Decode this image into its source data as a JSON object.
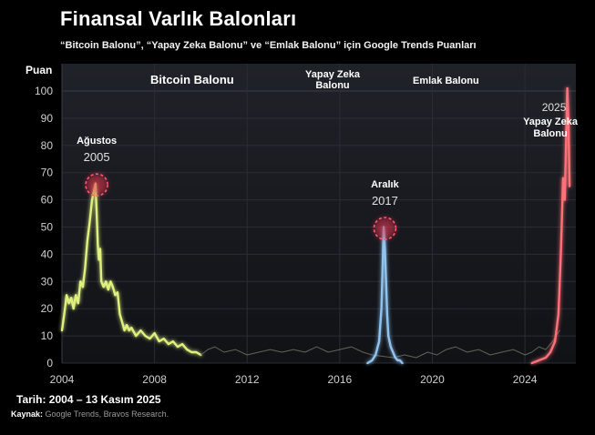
{
  "header": {
    "title": "Finansal Varlık Balonları",
    "subtitle": "“Bitcoin Balonu”, “Yapay Zeka Balonu” ve “Emlak Balonu” için Google Trends Puanları"
  },
  "footer": {
    "date_label": "Tarih:",
    "date_value": "2004 – 13 Kasım 2025",
    "source_label": "Kaynak:",
    "source_value": "Google Trends, Bravos Research."
  },
  "colors": {
    "bitcoin": "#8fc4f0",
    "ai": "#ff6f78",
    "housing": "#dff07e",
    "grid": "#2a2d35",
    "background_top": "#202229",
    "background_bottom": "#111216",
    "highlight": "#e8344f"
  },
  "chart_data": {
    "type": "line",
    "title": "Finansal Varlık Balonları",
    "ylabel": "Puan",
    "xlabel": "",
    "xlim": [
      2004,
      2026.2
    ],
    "ylim": [
      0,
      100
    ],
    "x_ticks": [
      2004,
      2008,
      2012,
      2016,
      2020,
      2024
    ],
    "y_ticks": [
      0,
      10,
      20,
      30,
      40,
      50,
      60,
      70,
      80,
      90,
      100
    ],
    "grid": true,
    "legend_position": "top",
    "legend": [
      {
        "key": "bitcoin",
        "label": "Bitcoin Balonu"
      },
      {
        "key": "ai",
        "label": "Yapay Zeka\nBalonu"
      },
      {
        "key": "housing",
        "label": "Emlak Balonu"
      }
    ],
    "series": [
      {
        "name": "Emlak Balonu",
        "key": "housing",
        "x": [
          2004.0,
          2004.1,
          2004.2,
          2004.3,
          2004.4,
          2004.5,
          2004.6,
          2004.7,
          2004.8,
          2004.9,
          2005.0,
          2005.1,
          2005.2,
          2005.3,
          2005.4,
          2005.45,
          2005.5,
          2005.55,
          2005.6,
          2005.65,
          2005.7,
          2005.8,
          2005.9,
          2006.0,
          2006.1,
          2006.2,
          2006.3,
          2006.4,
          2006.5,
          2006.6,
          2006.7,
          2006.8,
          2006.9,
          2007.0,
          2007.2,
          2007.4,
          2007.6,
          2007.8,
          2008.0,
          2008.2,
          2008.4,
          2008.6,
          2008.8,
          2009.0,
          2009.2,
          2009.4,
          2009.6,
          2009.8,
          2010.0
        ],
        "y": [
          12,
          18,
          25,
          22,
          24,
          20,
          25,
          22,
          30,
          28,
          35,
          45,
          52,
          60,
          64,
          66,
          55,
          43,
          38,
          42,
          30,
          28,
          30,
          27,
          30,
          28,
          25,
          26,
          18,
          15,
          12,
          14,
          12,
          13,
          10,
          12,
          10,
          9,
          11,
          8,
          9,
          7,
          8,
          6,
          7,
          5,
          4,
          4,
          3
        ]
      },
      {
        "name": "",
        "key": "housing_bg",
        "x": [
          2010.0,
          2010.3,
          2010.6,
          2011.0,
          2011.5,
          2012.0,
          2012.5,
          2013.0,
          2013.5,
          2014.0,
          2014.5,
          2015.0,
          2015.5,
          2016.0,
          2016.5,
          2017.0,
          2017.4,
          2018.3,
          2018.8,
          2019.3,
          2019.8,
          2020.2,
          2020.6,
          2021.0,
          2021.5,
          2022.0,
          2022.5,
          2023.0,
          2023.5,
          2024.0,
          2024.3,
          2024.6,
          2024.9,
          2025.2,
          2025.5
        ],
        "y": [
          3,
          5,
          6,
          4,
          5,
          3,
          4,
          5,
          4,
          5,
          4,
          6,
          4,
          5,
          6,
          4,
          3,
          2,
          3,
          2,
          4,
          3,
          5,
          6,
          4,
          5,
          3,
          4,
          5,
          3,
          4,
          6,
          5,
          8,
          12
        ]
      },
      {
        "name": "Bitcoin Balonu",
        "key": "bitcoin",
        "x": [
          2017.2,
          2017.4,
          2017.55,
          2017.7,
          2017.8,
          2017.85,
          2017.9,
          2017.95,
          2018.0,
          2018.05,
          2018.1,
          2018.2,
          2018.3,
          2018.4,
          2018.5,
          2018.6,
          2018.7
        ],
        "y": [
          0,
          1,
          3,
          8,
          20,
          35,
          50,
          42,
          30,
          18,
          10,
          6,
          4,
          2,
          1,
          1,
          0
        ]
      },
      {
        "name": "Yapay Zeka Balonu",
        "key": "ai",
        "x": [
          2024.3,
          2024.6,
          2024.9,
          2025.1,
          2025.3,
          2025.45,
          2025.55,
          2025.65,
          2025.72,
          2025.78,
          2025.83,
          2025.88,
          2025.93
        ],
        "y": [
          0,
          1,
          2,
          4,
          8,
          18,
          40,
          68,
          60,
          82,
          101,
          88,
          65
        ]
      }
    ],
    "annotations": [
      {
        "series": "housing",
        "x": 2005.5,
        "y": 65.5,
        "text": "Ağustos",
        "year": "2005"
      },
      {
        "series": "bitcoin",
        "x": 2017.95,
        "y": 49.5,
        "text": "Aralık",
        "year": "2017"
      },
      {
        "series": "ai",
        "x": 2025.1,
        "y": 91,
        "text": "Yapay Zeka\nBalonu",
        "year": "2025"
      }
    ]
  }
}
